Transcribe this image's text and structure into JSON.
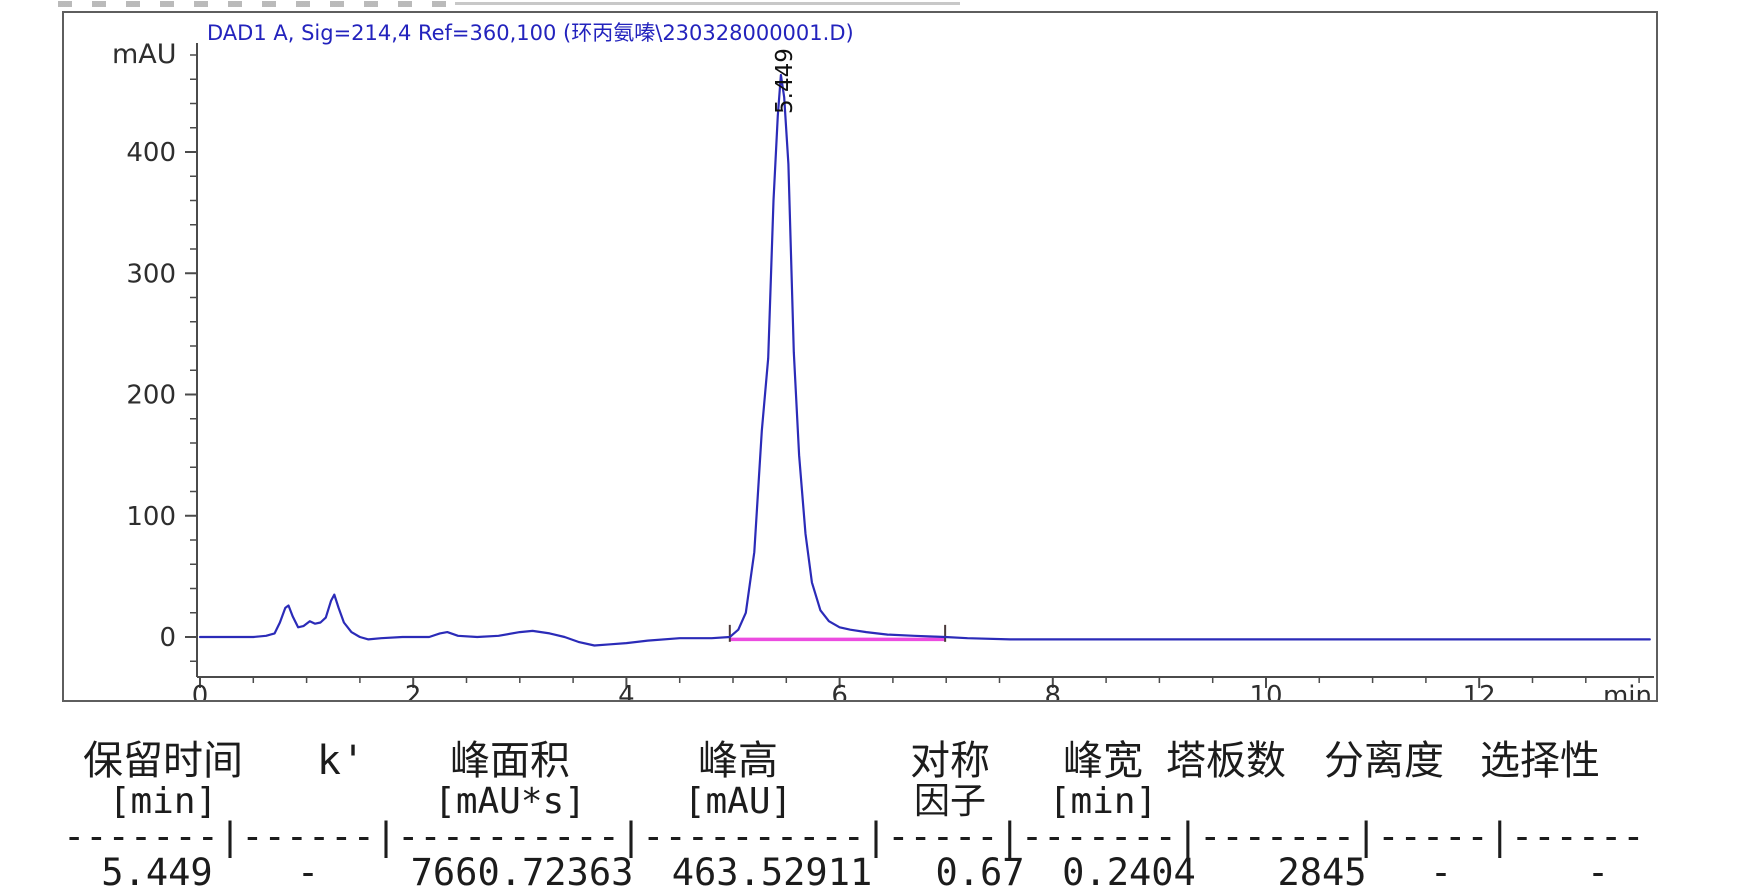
{
  "chart_data": {
    "type": "line",
    "title": "DAD1 A, Sig=214,4 Ref=360,100 (环丙氨嗪\\230328000001.D)",
    "x_axis": {
      "label": "min",
      "range": [
        0,
        13.7
      ],
      "major_ticks": [
        0,
        2,
        4,
        6,
        8,
        10,
        12
      ],
      "minor_tick_interval": 0.5
    },
    "y_axis": {
      "label": "mAU",
      "range": [
        -33,
        494
      ],
      "major_ticks": [
        0,
        100,
        200,
        300,
        400
      ],
      "minor_tick_interval": 20
    },
    "grid": false,
    "series": [
      {
        "name": "DAD1 A signal",
        "color": "#2b2bb8",
        "points": [
          [
            0,
            0
          ],
          [
            0.5,
            0
          ],
          [
            0.62,
            1
          ],
          [
            0.7,
            3
          ],
          [
            0.75,
            12
          ],
          [
            0.8,
            24
          ],
          [
            0.83,
            26
          ],
          [
            0.87,
            17
          ],
          [
            0.92,
            8
          ],
          [
            0.97,
            9
          ],
          [
            1.03,
            13
          ],
          [
            1.08,
            11
          ],
          [
            1.13,
            12
          ],
          [
            1.18,
            16
          ],
          [
            1.23,
            30
          ],
          [
            1.26,
            35
          ],
          [
            1.3,
            24
          ],
          [
            1.35,
            12
          ],
          [
            1.42,
            4
          ],
          [
            1.5,
            0
          ],
          [
            1.58,
            -2
          ],
          [
            1.7,
            -1
          ],
          [
            1.9,
            0
          ],
          [
            2.15,
            0
          ],
          [
            2.25,
            3
          ],
          [
            2.32,
            4
          ],
          [
            2.42,
            1
          ],
          [
            2.6,
            0
          ],
          [
            2.8,
            1
          ],
          [
            3.0,
            4
          ],
          [
            3.12,
            5
          ],
          [
            3.28,
            3
          ],
          [
            3.42,
            0
          ],
          [
            3.55,
            -4
          ],
          [
            3.7,
            -7
          ],
          [
            3.85,
            -6
          ],
          [
            4.0,
            -5
          ],
          [
            4.2,
            -3
          ],
          [
            4.5,
            -1
          ],
          [
            4.8,
            -1
          ],
          [
            4.97,
            0
          ],
          [
            5.05,
            6
          ],
          [
            5.12,
            20
          ],
          [
            5.2,
            70
          ],
          [
            5.27,
            170
          ],
          [
            5.33,
            230
          ],
          [
            5.38,
            360
          ],
          [
            5.42,
            430
          ],
          [
            5.449,
            463.5
          ],
          [
            5.48,
            445
          ],
          [
            5.52,
            390
          ],
          [
            5.57,
            235
          ],
          [
            5.62,
            150
          ],
          [
            5.68,
            85
          ],
          [
            5.74,
            45
          ],
          [
            5.82,
            22
          ],
          [
            5.9,
            13
          ],
          [
            6.0,
            8
          ],
          [
            6.1,
            6
          ],
          [
            6.25,
            4
          ],
          [
            6.45,
            2
          ],
          [
            6.7,
            1
          ],
          [
            6.99,
            0
          ],
          [
            7.2,
            -1
          ],
          [
            7.6,
            -2
          ],
          [
            8.5,
            -2
          ],
          [
            9.5,
            -2
          ],
          [
            10.5,
            -2
          ],
          [
            11.5,
            -2
          ],
          [
            12.5,
            -2
          ],
          [
            13.6,
            -2
          ]
        ]
      }
    ],
    "baseline": {
      "color": "#ec4ce0",
      "from": 4.97,
      "to": 6.99,
      "value": -2
    },
    "integration_marks": [
      4.97,
      6.99
    ],
    "peak_labels": [
      {
        "text": "5.449",
        "time": 5.449,
        "value": 463.5
      }
    ]
  },
  "table": {
    "columns": [
      {
        "title": "保留时间",
        "unit": "[min]"
      },
      {
        "title": "k'",
        "unit": ""
      },
      {
        "title": "峰面积",
        "unit": "[mAU*s]"
      },
      {
        "title": "峰高",
        "unit": "[mAU]"
      },
      {
        "title": "对称",
        "unit": "因子"
      },
      {
        "title": "峰宽",
        "unit": "[min]"
      },
      {
        "title": "塔板数",
        "unit": ""
      },
      {
        "title": "分离度",
        "unit": ""
      },
      {
        "title": "选择性",
        "unit": ""
      }
    ],
    "separator": "-------|------|----------|----------|-----|-------|-------|-----|------",
    "rows": [
      [
        "5.449",
        "-",
        "7660.72363",
        "463.52911",
        "0.67",
        "0.2404",
        "2845",
        "-",
        "-"
      ]
    ]
  }
}
